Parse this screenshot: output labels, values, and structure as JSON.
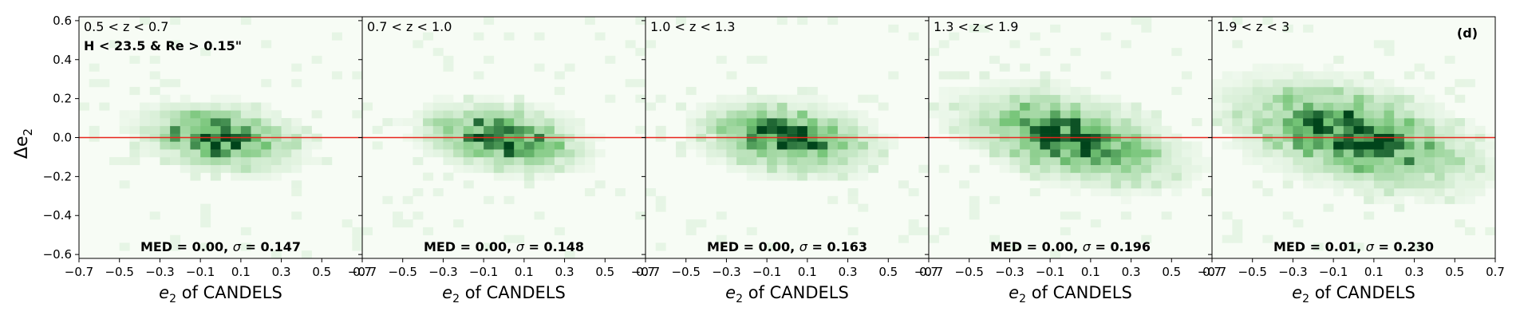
{
  "chart_data": {
    "type": "heatmap",
    "ylabel": "Δe",
    "ylabel_sub": "2",
    "ylim": [
      -0.62,
      0.62
    ],
    "xlim": [
      -0.7,
      0.7
    ],
    "x_ticks": [
      "−0.7",
      "−0.5",
      "−0.3",
      "−0.1",
      "0.1",
      "0.3",
      "0.5",
      "0.7"
    ],
    "x_tick_values": [
      -0.7,
      -0.5,
      -0.3,
      -0.1,
      0.1,
      0.3,
      0.5,
      0.7
    ],
    "y_ticks": [
      "−0.6",
      "−0.4",
      "−0.2",
      "0.0",
      "0.2",
      "0.4",
      "0.6"
    ],
    "y_tick_values": [
      -0.6,
      -0.4,
      -0.2,
      0.0,
      0.2,
      0.4,
      0.6
    ],
    "reference_line": {
      "y": 0.0,
      "color": "#e8251d"
    },
    "colormap": "Greens",
    "colors": {
      "low": "#f7fcf5",
      "mid": "#74c476",
      "high": "#00441b"
    },
    "panel_label": "(d)",
    "panels": [
      {
        "xlabel_main": "e",
        "xlabel_sub": "2",
        "xlabel_rest": " of CANDELS",
        "range_label": "0.5 < z < 0.7",
        "sub_label": "H < 23.5 & Re > 0.15\"",
        "med_label": "MED = 0.00, ",
        "sigma_symbol": "σ",
        "sigma_label": " = 0.147",
        "med": 0.0,
        "sigma": 0.147
      },
      {
        "xlabel_main": "e",
        "xlabel_sub": "2",
        "xlabel_rest": " of CANDELS",
        "range_label": "0.7 < z < 1.0",
        "sub_label": "",
        "med_label": "MED = 0.00, ",
        "sigma_symbol": "σ",
        "sigma_label": " = 0.148",
        "med": 0.0,
        "sigma": 0.148
      },
      {
        "xlabel_main": "e",
        "xlabel_sub": "2",
        "xlabel_rest": " of CANDELS",
        "range_label": "1.0 < z < 1.3",
        "sub_label": "",
        "med_label": "MED = 0.00, ",
        "sigma_symbol": "σ",
        "sigma_label": " = 0.163",
        "med": 0.0,
        "sigma": 0.163
      },
      {
        "xlabel_main": "e",
        "xlabel_sub": "2",
        "xlabel_rest": " of CANDELS",
        "range_label": "1.3 < z < 1.9",
        "sub_label": "",
        "med_label": "MED = 0.00, ",
        "sigma_symbol": "σ",
        "sigma_label": " = 0.196",
        "med": 0.0,
        "sigma": 0.196
      },
      {
        "xlabel_main": "e",
        "xlabel_sub": "2",
        "xlabel_rest": " of CANDELS",
        "range_label": "1.9 < z < 3",
        "sub_label": "",
        "med_label": "MED = 0.01, ",
        "sigma_symbol": "σ",
        "sigma_label": " = 0.230",
        "med": 0.01,
        "sigma": 0.23
      }
    ]
  }
}
